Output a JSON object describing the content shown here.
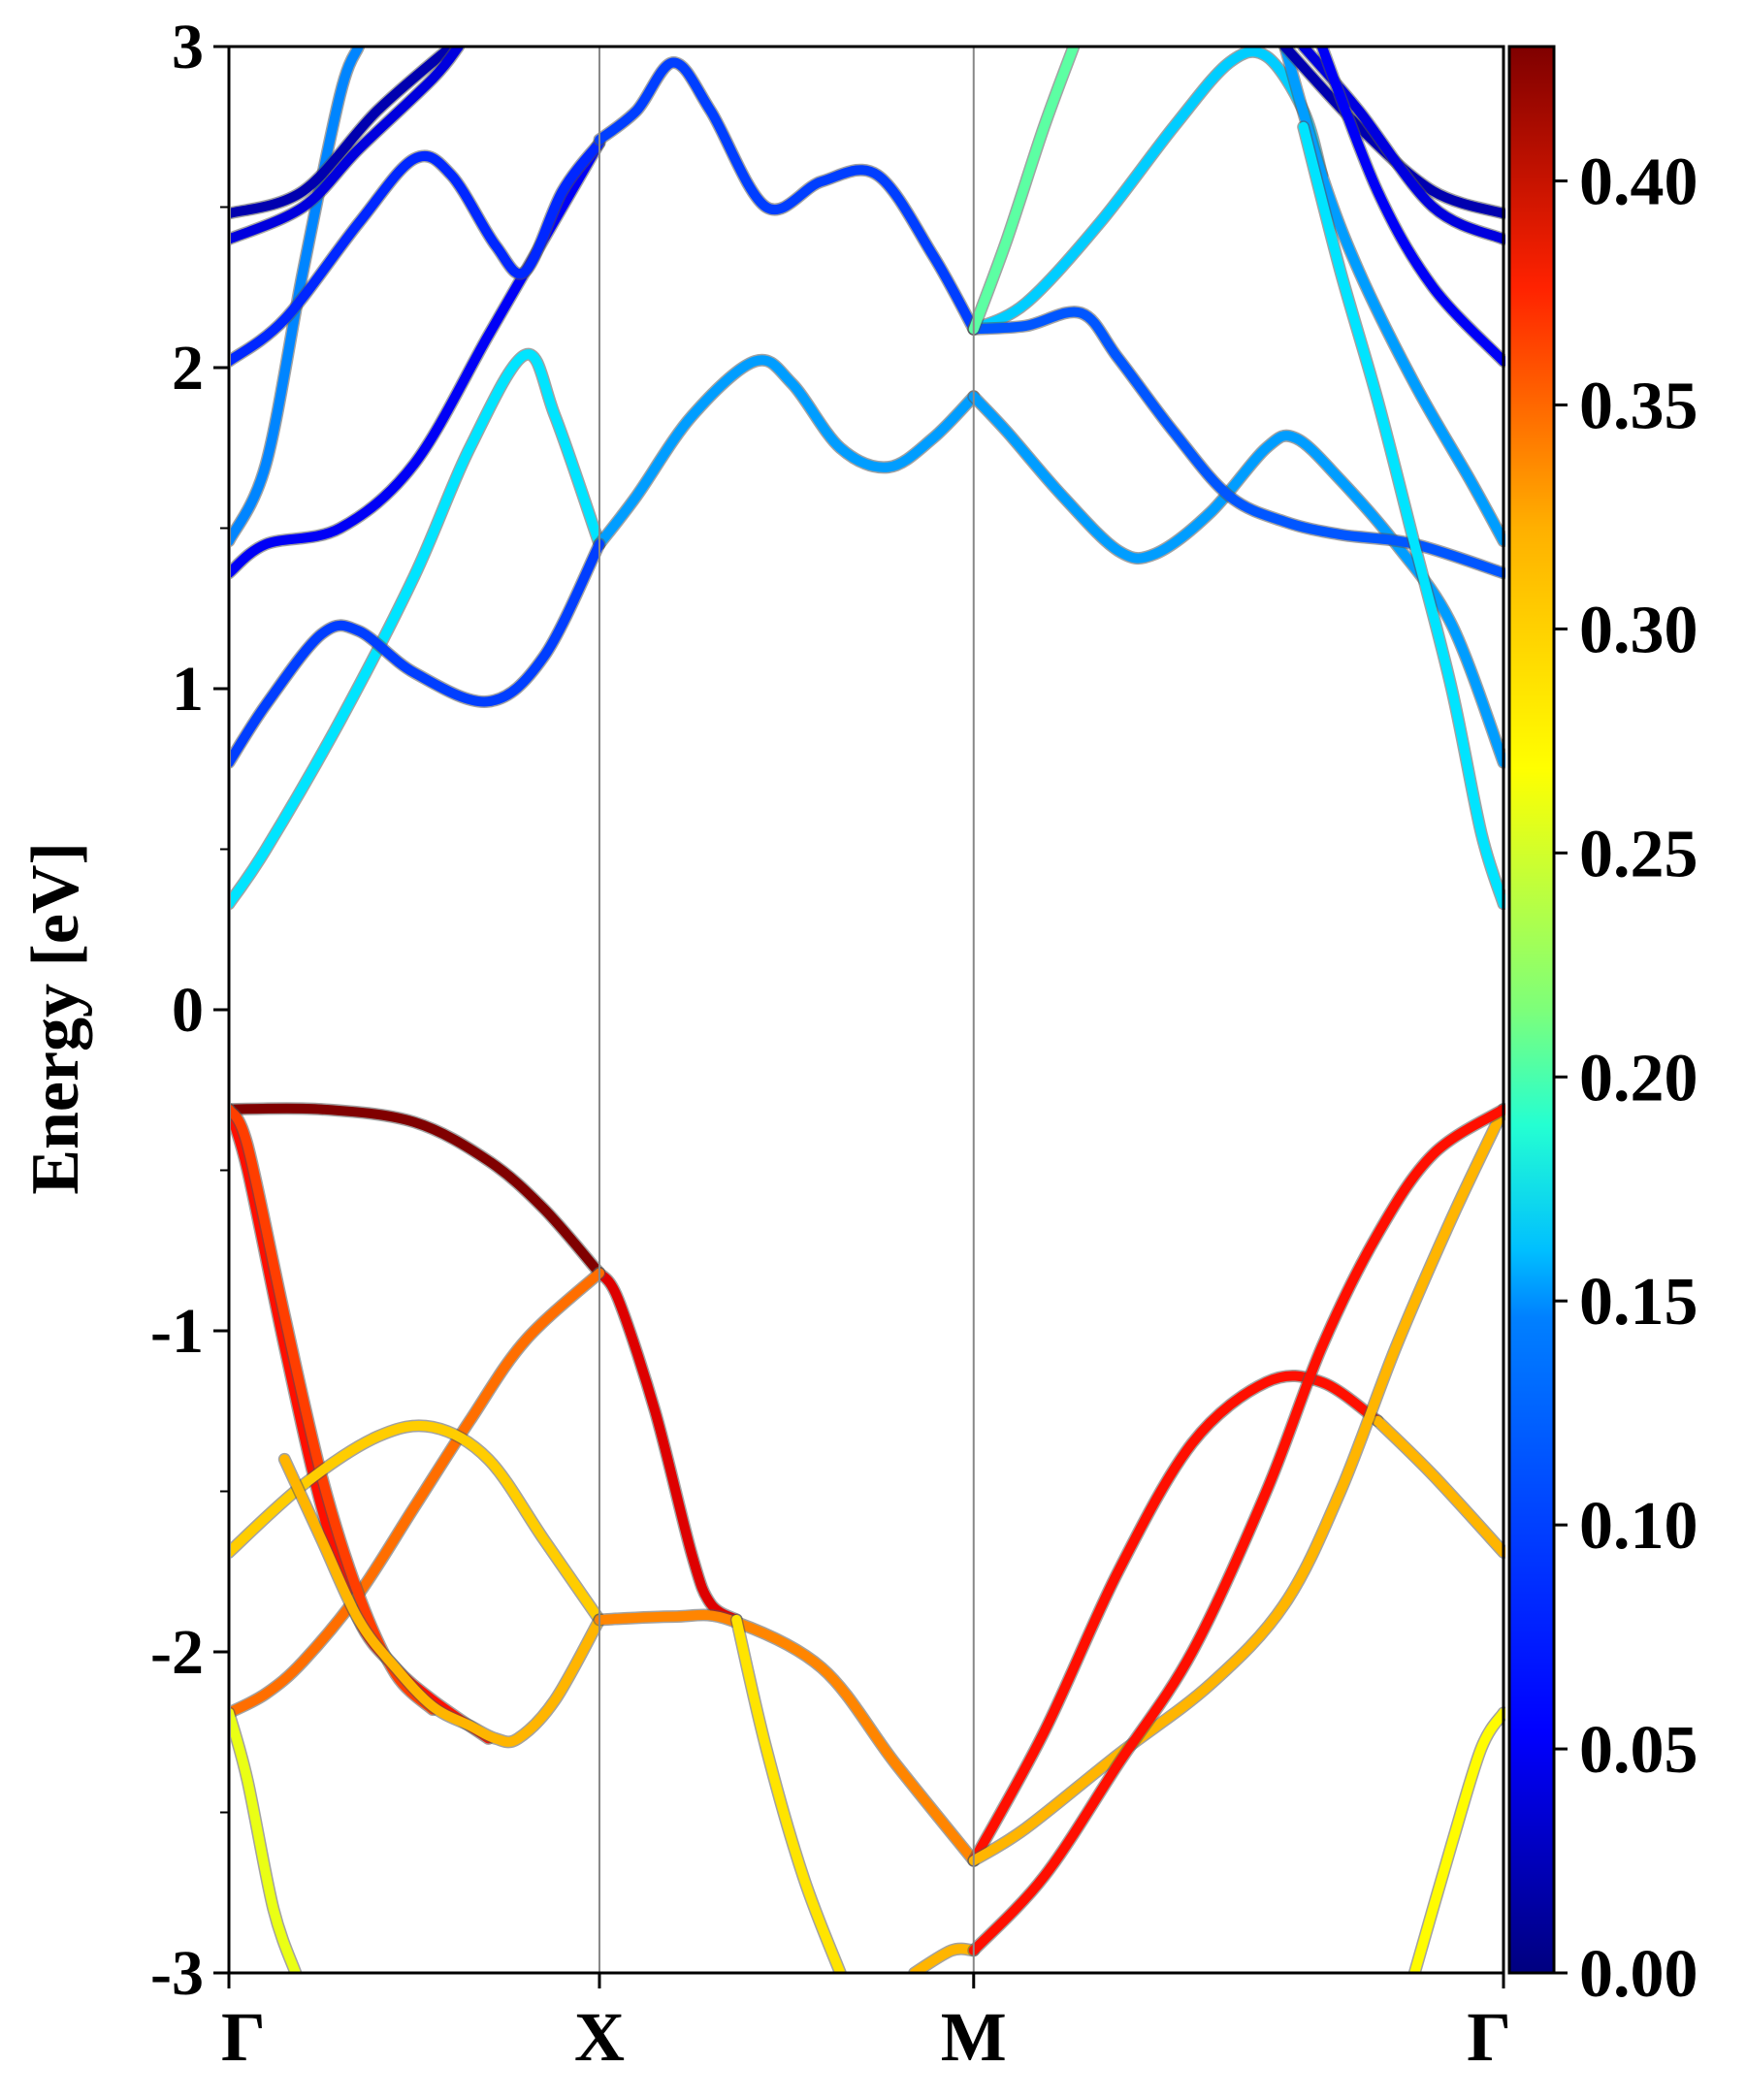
{
  "chart_data": {
    "type": "line",
    "title": "",
    "ylabel": "Energy [eV]",
    "xlabel": "",
    "ylim": [
      -3,
      3
    ],
    "xlim": [
      0,
      3.44
    ],
    "yticks": [
      {
        "value": 3,
        "label": "3"
      },
      {
        "value": 2,
        "label": "2"
      },
      {
        "value": 1,
        "label": "1"
      },
      {
        "value": 0,
        "label": "0"
      },
      {
        "value": -1,
        "label": "-1"
      },
      {
        "value": -2,
        "label": "-2"
      },
      {
        "value": -3,
        "label": "-3"
      }
    ],
    "high_symmetry_points": [
      {
        "label": "Γ",
        "x": 0
      },
      {
        "label": "X",
        "x": 1.0
      },
      {
        "label": "M",
        "x": 2.01
      },
      {
        "label": "Γ",
        "x": 3.44
      }
    ],
    "colorbar": {
      "colormap": "jet",
      "range": [
        0.0,
        0.43
      ],
      "ticks": [
        {
          "value": 0.0,
          "label": "0.00"
        },
        {
          "value": 0.05,
          "label": "0.05"
        },
        {
          "value": 0.1,
          "label": "0.10"
        },
        {
          "value": 0.15,
          "label": "0.15"
        },
        {
          "value": 0.2,
          "label": "0.20"
        },
        {
          "value": 0.25,
          "label": "0.25"
        },
        {
          "value": 0.3,
          "label": "0.30"
        },
        {
          "value": 0.35,
          "label": "0.35"
        },
        {
          "value": 0.4,
          "label": "0.40"
        }
      ]
    },
    "series": [
      {
        "weight": 0.43,
        "points": [
          [
            0,
            -0.31
          ],
          [
            0.25,
            -0.31
          ],
          [
            0.5,
            -0.35
          ],
          [
            0.7,
            -0.47
          ],
          [
            0.85,
            -0.62
          ],
          [
            1.0,
            -0.82
          ]
        ]
      },
      {
        "weight": 0.39,
        "points": [
          [
            1.0,
            -0.82
          ],
          [
            1.05,
            -0.9
          ],
          [
            1.15,
            -1.25
          ],
          [
            1.25,
            -1.7
          ],
          [
            1.3,
            -1.85
          ],
          [
            1.37,
            -1.9
          ]
        ]
      },
      {
        "weight": 0.37,
        "points": [
          [
            0,
            -0.31
          ],
          [
            0.05,
            -0.5
          ],
          [
            0.15,
            -1.05
          ],
          [
            0.25,
            -1.55
          ],
          [
            0.35,
            -1.9
          ],
          [
            0.45,
            -2.05
          ],
          [
            0.55,
            -2.15
          ],
          [
            0.7,
            -2.27
          ]
        ]
      },
      {
        "weight": 0.33,
        "points": [
          [
            0,
            -2.19
          ],
          [
            0.1,
            -2.13
          ],
          [
            0.2,
            -2.03
          ],
          [
            0.35,
            -1.82
          ],
          [
            0.5,
            -1.55
          ],
          [
            0.65,
            -1.28
          ],
          [
            0.8,
            -1.03
          ],
          [
            1.0,
            -0.82
          ]
        ]
      },
      {
        "weight": 0.35,
        "points": [
          [
            0,
            -0.31
          ],
          [
            0.05,
            -0.42
          ],
          [
            0.15,
            -0.95
          ],
          [
            0.25,
            -1.45
          ],
          [
            0.35,
            -1.82
          ],
          [
            0.45,
            -2.07
          ],
          [
            0.55,
            -2.18
          ]
        ]
      },
      {
        "weight": 0.29,
        "points": [
          [
            0,
            -1.69
          ],
          [
            0.2,
            -1.48
          ],
          [
            0.4,
            -1.33
          ],
          [
            0.55,
            -1.3
          ],
          [
            0.7,
            -1.4
          ],
          [
            0.85,
            -1.65
          ],
          [
            1.0,
            -1.9
          ]
        ]
      },
      {
        "weight": 0.3,
        "points": [
          [
            0.15,
            -1.4
          ],
          [
            0.25,
            -1.65
          ],
          [
            0.35,
            -1.9
          ],
          [
            0.45,
            -2.05
          ],
          [
            0.55,
            -2.17
          ],
          [
            0.65,
            -2.23
          ],
          [
            0.72,
            -2.27
          ],
          [
            0.78,
            -2.27
          ],
          [
            0.88,
            -2.15
          ],
          [
            1.0,
            -1.9
          ]
        ]
      },
      {
        "weight": 0.32,
        "points": [
          [
            1.0,
            -1.9
          ],
          [
            1.2,
            -1.89
          ],
          [
            1.35,
            -1.9
          ],
          [
            1.6,
            -2.05
          ],
          [
            1.8,
            -2.35
          ],
          [
            2.01,
            -2.65
          ]
        ]
      },
      {
        "weight": 0.28,
        "points": [
          [
            1.37,
            -1.9
          ],
          [
            1.45,
            -2.3
          ],
          [
            1.55,
            -2.7
          ],
          [
            1.65,
            -3.0
          ]
        ]
      },
      {
        "weight": 0.26,
        "points": [
          [
            0,
            -2.19
          ],
          [
            0.05,
            -2.4
          ],
          [
            0.12,
            -2.8
          ],
          [
            0.18,
            -3.0
          ]
        ]
      },
      {
        "weight": 0.3,
        "points": [
          [
            1.85,
            -3.0
          ],
          [
            1.95,
            -2.93
          ],
          [
            2.01,
            -2.93
          ]
        ]
      },
      {
        "weight": 0.37,
        "points": [
          [
            2.01,
            -2.65
          ],
          [
            2.2,
            -2.25
          ],
          [
            2.4,
            -1.75
          ],
          [
            2.6,
            -1.35
          ],
          [
            2.8,
            -1.16
          ],
          [
            2.95,
            -1.16
          ],
          [
            3.1,
            -1.28
          ]
        ]
      },
      {
        "weight": 0.3,
        "points": [
          [
            3.1,
            -1.28
          ],
          [
            3.25,
            -1.45
          ],
          [
            3.44,
            -1.69
          ]
        ]
      },
      {
        "weight": 0.3,
        "points": [
          [
            2.01,
            -2.65
          ],
          [
            2.15,
            -2.55
          ],
          [
            2.4,
            -2.32
          ],
          [
            2.65,
            -2.1
          ],
          [
            2.85,
            -1.85
          ],
          [
            3.0,
            -1.5
          ],
          [
            3.15,
            -1.05
          ],
          [
            3.3,
            -0.65
          ],
          [
            3.44,
            -0.31
          ]
        ]
      },
      {
        "weight": 0.37,
        "points": [
          [
            2.01,
            -2.93
          ],
          [
            2.2,
            -2.7
          ],
          [
            2.4,
            -2.35
          ],
          [
            2.6,
            -2.0
          ],
          [
            2.8,
            -1.5
          ],
          [
            2.95,
            -1.05
          ],
          [
            3.1,
            -0.7
          ],
          [
            3.25,
            -0.45
          ],
          [
            3.44,
            -0.31
          ]
        ]
      },
      {
        "weight": 0.27,
        "points": [
          [
            3.2,
            -3.0
          ],
          [
            3.3,
            -2.6
          ],
          [
            3.38,
            -2.3
          ],
          [
            3.44,
            -2.19
          ]
        ]
      },
      {
        "weight": 0.15,
        "points": [
          [
            0,
            0.33
          ],
          [
            0.1,
            0.5
          ],
          [
            0.3,
            0.9
          ],
          [
            0.5,
            1.35
          ],
          [
            0.65,
            1.75
          ],
          [
            0.8,
            2.04
          ],
          [
            0.88,
            1.85
          ],
          [
            1.0,
            1.45
          ]
        ]
      },
      {
        "weight": 0.12,
        "points": [
          [
            1.0,
            1.45
          ],
          [
            1.1,
            1.6
          ],
          [
            1.25,
            1.85
          ],
          [
            1.42,
            2.02
          ],
          [
            1.52,
            1.95
          ],
          [
            1.65,
            1.75
          ],
          [
            1.78,
            1.69
          ],
          [
            1.9,
            1.78
          ],
          [
            2.01,
            1.91
          ]
        ]
      },
      {
        "weight": 0.12,
        "points": [
          [
            2.01,
            1.91
          ],
          [
            2.1,
            1.8
          ],
          [
            2.25,
            1.6
          ],
          [
            2.4,
            1.43
          ],
          [
            2.5,
            1.42
          ],
          [
            2.65,
            1.55
          ],
          [
            2.8,
            1.75
          ],
          [
            2.88,
            1.78
          ],
          [
            3.0,
            1.65
          ],
          [
            3.15,
            1.45
          ],
          [
            3.3,
            1.2
          ],
          [
            3.44,
            0.77
          ]
        ]
      },
      {
        "weight": 0.08,
        "points": [
          [
            0,
            0.77
          ],
          [
            0.1,
            0.95
          ],
          [
            0.25,
            1.17
          ],
          [
            0.35,
            1.18
          ],
          [
            0.5,
            1.05
          ],
          [
            0.7,
            0.96
          ],
          [
            0.85,
            1.1
          ],
          [
            1.0,
            1.45
          ]
        ]
      },
      {
        "weight": 0.05,
        "points": [
          [
            0,
            1.36
          ],
          [
            0.1,
            1.45
          ],
          [
            0.3,
            1.5
          ],
          [
            0.5,
            1.7
          ],
          [
            0.7,
            2.1
          ],
          [
            0.85,
            2.4
          ],
          [
            1.0,
            2.7
          ]
        ]
      },
      {
        "weight": 0.11,
        "points": [
          [
            0,
            1.46
          ],
          [
            0.1,
            1.7
          ],
          [
            0.2,
            2.3
          ],
          [
            0.3,
            2.85
          ],
          [
            0.35,
            3.0
          ]
        ]
      },
      {
        "weight": 0.07,
        "points": [
          [
            0,
            2.02
          ],
          [
            0.15,
            2.15
          ],
          [
            0.35,
            2.45
          ],
          [
            0.5,
            2.65
          ],
          [
            0.6,
            2.6
          ],
          [
            0.72,
            2.38
          ],
          [
            0.8,
            2.3
          ],
          [
            0.9,
            2.55
          ],
          [
            1.0,
            2.7
          ]
        ]
      },
      {
        "weight": 0.08,
        "points": [
          [
            1.0,
            2.71
          ],
          [
            1.1,
            2.8
          ],
          [
            1.2,
            2.95
          ],
          [
            1.3,
            2.8
          ],
          [
            1.45,
            2.5
          ],
          [
            1.6,
            2.58
          ],
          [
            1.75,
            2.6
          ],
          [
            1.9,
            2.35
          ],
          [
            2.01,
            2.12
          ]
        ]
      },
      {
        "weight": 0.14,
        "points": [
          [
            2.01,
            2.12
          ],
          [
            2.15,
            2.2
          ],
          [
            2.35,
            2.45
          ],
          [
            2.55,
            2.75
          ],
          [
            2.7,
            2.95
          ],
          [
            2.8,
            2.97
          ],
          [
            2.9,
            2.8
          ],
          [
            2.95,
            2.6
          ]
        ]
      },
      {
        "weight": 0.09,
        "points": [
          [
            2.01,
            2.12
          ],
          [
            2.15,
            2.13
          ],
          [
            2.3,
            2.17
          ],
          [
            2.4,
            2.03
          ],
          [
            2.55,
            1.8
          ],
          [
            2.7,
            1.6
          ],
          [
            2.85,
            1.52
          ],
          [
            3.0,
            1.48
          ],
          [
            3.2,
            1.45
          ],
          [
            3.44,
            1.36
          ]
        ]
      },
      {
        "weight": 0.2,
        "points": [
          [
            2.01,
            2.12
          ],
          [
            2.1,
            2.4
          ],
          [
            2.2,
            2.75
          ],
          [
            2.28,
            3.0
          ]
        ]
      },
      {
        "weight": 0.12,
        "points": [
          [
            2.85,
            3.0
          ],
          [
            2.95,
            2.6
          ],
          [
            3.05,
            2.3
          ],
          [
            3.2,
            1.95
          ],
          [
            3.35,
            1.65
          ],
          [
            3.44,
            1.46
          ]
        ]
      },
      {
        "weight": 0.15,
        "points": [
          [
            2.9,
            2.75
          ],
          [
            3.0,
            2.3
          ],
          [
            3.1,
            1.9
          ],
          [
            3.2,
            1.45
          ],
          [
            3.3,
            1.0
          ],
          [
            3.38,
            0.55
          ],
          [
            3.44,
            0.33
          ]
        ]
      },
      {
        "weight": 0.02,
        "points": [
          [
            0,
            2.48
          ],
          [
            0.2,
            2.55
          ],
          [
            0.4,
            2.8
          ],
          [
            0.6,
            3.0
          ]
        ]
      },
      {
        "weight": 0.04,
        "points": [
          [
            0,
            2.4
          ],
          [
            0.2,
            2.5
          ],
          [
            0.35,
            2.68
          ],
          [
            0.55,
            2.9
          ],
          [
            0.62,
            3.0
          ]
        ]
      },
      {
        "weight": 0.02,
        "points": [
          [
            2.85,
            3.0
          ],
          [
            3.05,
            2.75
          ],
          [
            3.25,
            2.55
          ],
          [
            3.44,
            2.48
          ]
        ]
      },
      {
        "weight": 0.04,
        "points": [
          [
            2.9,
            3.0
          ],
          [
            3.05,
            2.8
          ],
          [
            3.25,
            2.5
          ],
          [
            3.44,
            2.4
          ]
        ]
      },
      {
        "weight": 0.05,
        "points": [
          [
            2.95,
            3.0
          ],
          [
            3.1,
            2.55
          ],
          [
            3.25,
            2.25
          ],
          [
            3.44,
            2.02
          ]
        ]
      }
    ]
  }
}
